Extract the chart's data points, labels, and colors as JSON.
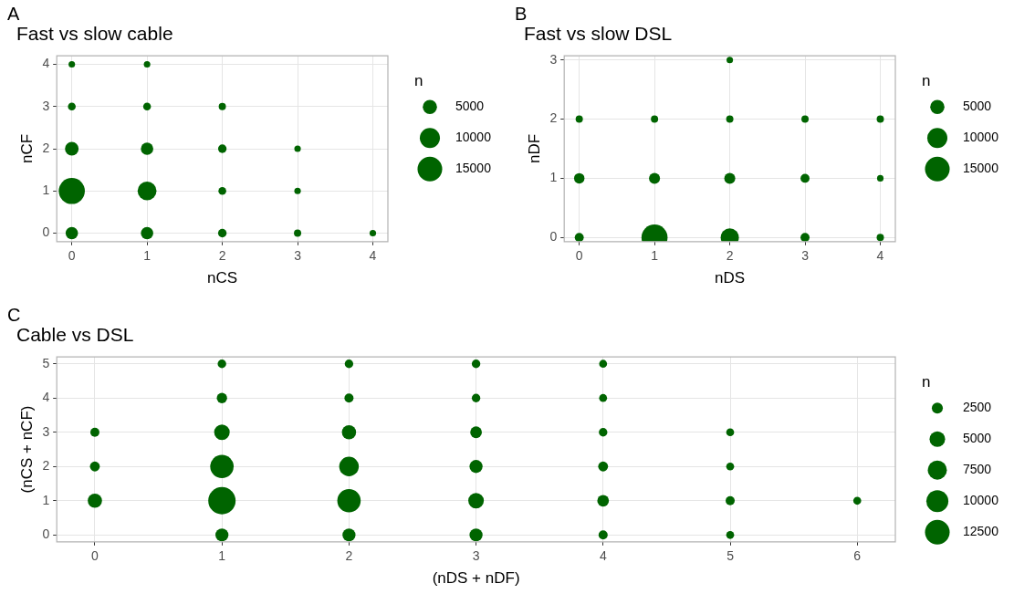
{
  "chart_data": [
    {
      "type": "bubble",
      "title": "Fast vs slow cable",
      "xlabel": "nCS",
      "ylabel": "nCF",
      "legend_title": "n",
      "annotations": [
        "A"
      ],
      "xlim": [
        -0.2,
        4.2
      ],
      "ylim": [
        -0.2,
        4.2
      ],
      "xticks": [
        0,
        1,
        2,
        3,
        4
      ],
      "yticks": [
        0,
        1,
        2,
        3,
        4
      ],
      "grid": true,
      "size_legend": [
        5000,
        10000,
        15000
      ],
      "series": [
        {
          "color": "#006400",
          "x": [
            0,
            1,
            0,
            1,
            2,
            0,
            1,
            2,
            3,
            0,
            1,
            2,
            3,
            0,
            1,
            2,
            3,
            4
          ],
          "values": [
            4,
            4,
            3,
            3,
            3,
            2,
            2,
            2,
            2,
            1,
            1,
            1,
            1,
            0,
            0,
            0,
            0,
            0
          ],
          "sizes": [
            1050,
            1050,
            1500,
            1500,
            1300,
            4600,
            3800,
            1800,
            1050,
            16800,
            8800,
            1500,
            1050,
            3800,
            3800,
            1800,
            1300,
            1050
          ]
        }
      ]
    },
    {
      "type": "bubble",
      "title": "Fast vs slow DSL",
      "xlabel": "nDS",
      "ylabel": "nDF",
      "legend_title": "n",
      "annotations": [
        "B"
      ],
      "xlim": [
        -0.2,
        4.2
      ],
      "ylim": [
        -0.07,
        3.07
      ],
      "xticks": [
        0,
        1,
        2,
        3,
        4
      ],
      "yticks": [
        0,
        1,
        2,
        3
      ],
      "grid": true,
      "size_legend": [
        5000,
        10000,
        15000
      ],
      "series": [
        {
          "color": "#006400",
          "x": [
            2,
            0,
            1,
            2,
            3,
            4,
            0,
            1,
            2,
            3,
            4,
            0,
            1,
            2,
            3,
            4
          ],
          "values": [
            3,
            2,
            2,
            2,
            2,
            2,
            1,
            1,
            1,
            1,
            1,
            0,
            0,
            0,
            0,
            0
          ],
          "sizes": [
            1050,
            1300,
            1300,
            1300,
            1300,
            1300,
            2700,
            3000,
            3000,
            2000,
            1050,
            2000,
            16800,
            8200,
            2000,
            1300
          ]
        }
      ]
    },
    {
      "type": "bubble",
      "title": "Cable vs DSL",
      "xlabel": "(nDS + nDF)",
      "ylabel": "(nCS + nCF)",
      "legend_title": "n",
      "annotations": [
        "C"
      ],
      "xlim": [
        -0.3,
        6.3
      ],
      "ylim": [
        -0.2,
        5.2
      ],
      "xticks": [
        0,
        1,
        2,
        3,
        4,
        5,
        6
      ],
      "yticks": [
        0,
        1,
        2,
        3,
        4,
        5
      ],
      "grid": true,
      "size_legend": [
        2500,
        5000,
        7500,
        10000,
        12500
      ],
      "series": [
        {
          "color": "#006400",
          "x": [
            0,
            0,
            0,
            1,
            1,
            1,
            1,
            1,
            1,
            2,
            2,
            2,
            2,
            2,
            2,
            3,
            3,
            3,
            3,
            3,
            3,
            4,
            4,
            4,
            4,
            4,
            4,
            5,
            5,
            5,
            5,
            6
          ],
          "values": [
            3,
            2,
            1,
            5,
            4,
            3,
            2,
            1,
            0,
            5,
            4,
            3,
            2,
            1,
            0,
            5,
            4,
            3,
            2,
            1,
            0,
            5,
            4,
            3,
            2,
            1,
            0,
            3,
            2,
            1,
            0,
            1
          ],
          "sizes": [
            1700,
            2000,
            4200,
            1500,
            2200,
            5000,
            11300,
            15400,
            3500,
            1500,
            1700,
            4200,
            7900,
            11300,
            3500,
            1500,
            1500,
            2800,
            3500,
            5000,
            3500,
            1300,
            1300,
            1500,
            2000,
            2800,
            1700,
            1300,
            1300,
            1700,
            1300,
            1300
          ]
        }
      ]
    }
  ]
}
